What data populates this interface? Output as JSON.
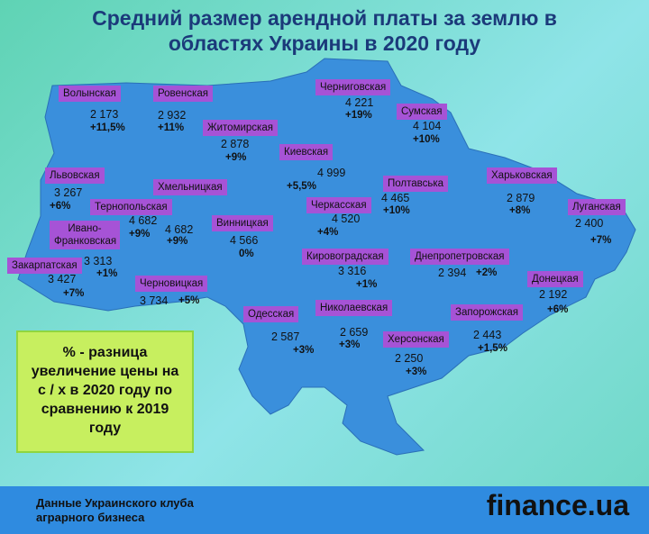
{
  "header": {
    "title_lines": [
      "Средний размер арендной платы за землю в",
      "областях Украины в 2020 году"
    ]
  },
  "regions": [
    {
      "name": "Волынская",
      "price": "2 173",
      "change": "+11,5%"
    },
    {
      "name": "Ровенская",
      "price": "2 932",
      "change": "+11%"
    },
    {
      "name": "Житомирская",
      "price": "2 878",
      "change": "+9%"
    },
    {
      "name": "Черниговская",
      "price": "4 221",
      "change": "+19%"
    },
    {
      "name": "Сумская",
      "price": "4 104",
      "change": "+10%"
    },
    {
      "name": "Киевская",
      "price": "4 999",
      "change": "+5,5%"
    },
    {
      "name": "Львовская",
      "price": "3 267",
      "change": "+6%"
    },
    {
      "name": "Хмельницкая",
      "price": "4 682",
      "change": "+9%"
    },
    {
      "name": "Тернопольская",
      "price": "4 682",
      "change": "+9%"
    },
    {
      "name": "Винницкая",
      "price": "4 566",
      "change": "0%"
    },
    {
      "name": "Черкасская",
      "price": "4 520",
      "change": "+4%"
    },
    {
      "name": "Полтавська",
      "price": "4 465",
      "change": "+10%"
    },
    {
      "name": "Харьковская",
      "price": "2 879",
      "change": "+8%"
    },
    {
      "name": "Луганская",
      "price": "2 400",
      "change": "+7%"
    },
    {
      "name": "Ивано-Франковская",
      "price": "3 313",
      "change": "+1%"
    },
    {
      "name": "Закарпатская",
      "price": "3 427",
      "change": "+7%"
    },
    {
      "name": "Черновицкая",
      "price": "3 734",
      "change": "+5%"
    },
    {
      "name": "Кировоградская",
      "price": "3 316",
      "change": "+1%"
    },
    {
      "name": "Днепропетровская",
      "price": "2 394",
      "change": "+2%"
    },
    {
      "name": "Донецкая",
      "price": "2 192",
      "change": "+6%"
    },
    {
      "name": "Одесская",
      "price": "2 587",
      "change": "+3%"
    },
    {
      "name": "Николаевская",
      "price": "2 659",
      "change": "+3%"
    },
    {
      "name": "Запорожская",
      "price": "2 443",
      "change": "+1,5%"
    },
    {
      "name": "Херсонская",
      "price": "2 250",
      "change": "+3%"
    }
  ],
  "note": {
    "lines": [
      "% - разница",
      "увеличение цены на",
      "с / х в 2020 году по",
      "сравнению к 2019",
      "году"
    ]
  },
  "footer": {
    "source_lines": [
      "Данные Украинского клуба",
      "аграрного бизнеса"
    ],
    "logo": "finance.ua"
  }
}
